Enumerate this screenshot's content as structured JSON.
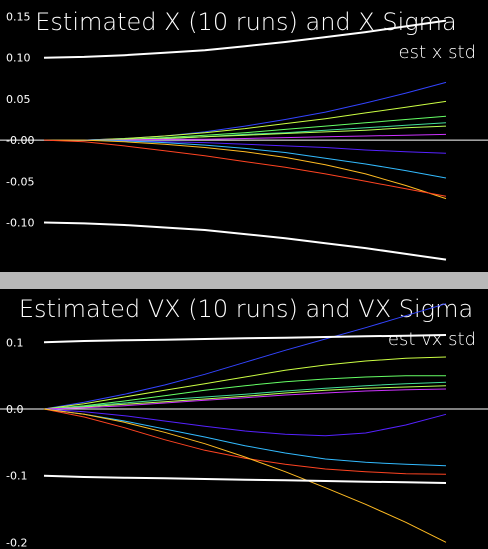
{
  "chart_data": [
    {
      "type": "line",
      "title": "Estimated X (10 runs) and X Sigma",
      "legend": [
        "est x std"
      ],
      "legend_position": "top-right",
      "x": [
        0,
        1,
        2,
        3,
        4,
        5,
        6,
        7,
        8,
        9,
        10
      ],
      "ylim": [
        -0.16,
        0.17
      ],
      "yticks": [
        {
          "value": 0.15,
          "label": "0.15"
        },
        {
          "value": 0.1,
          "label": "0.10"
        },
        {
          "value": 0.05,
          "label": "0.05"
        },
        {
          "value": 0.0,
          "label": "-0.00"
        },
        {
          "value": -0.05,
          "label": "-0.05"
        },
        {
          "value": -0.1,
          "label": "-0.10"
        }
      ],
      "sigma": [
        {
          "color": "#ffffff",
          "values": [
            0.1,
            0.101,
            0.103,
            0.106,
            0.109,
            0.114,
            0.119,
            0.125,
            0.131,
            0.138,
            0.145
          ]
        },
        {
          "color": "#ffffff",
          "values": [
            -0.1,
            -0.101,
            -0.103,
            -0.106,
            -0.109,
            -0.114,
            -0.119,
            -0.125,
            -0.131,
            -0.138,
            -0.145
          ]
        }
      ],
      "runs": [
        {
          "color": "#3344ff",
          "values": [
            0,
            0.0,
            0.002,
            0.005,
            0.01,
            0.017,
            0.025,
            0.034,
            0.045,
            0.057,
            0.07
          ]
        },
        {
          "color": "#ccff44",
          "values": [
            0,
            0.0,
            0.002,
            0.005,
            0.009,
            0.014,
            0.02,
            0.026,
            0.033,
            0.04,
            0.047
          ]
        },
        {
          "color": "#66ff66",
          "values": [
            0,
            0.0,
            0.001,
            0.003,
            0.006,
            0.009,
            0.013,
            0.017,
            0.021,
            0.025,
            0.029
          ]
        },
        {
          "color": "#44dd99",
          "values": [
            0,
            0.0,
            0.001,
            0.002,
            0.004,
            0.007,
            0.009,
            0.012,
            0.015,
            0.018,
            0.021
          ]
        },
        {
          "color": "#bbff55",
          "values": [
            0,
            0.0,
            0.001,
            0.002,
            0.004,
            0.006,
            0.008,
            0.01,
            0.012,
            0.015,
            0.017
          ]
        },
        {
          "color": "#cc33ff",
          "values": [
            0,
            0.0,
            0.0,
            0.001,
            0.001,
            0.002,
            0.003,
            0.004,
            0.005,
            0.006,
            0.007
          ]
        },
        {
          "color": "#5522ff",
          "values": [
            0,
            0.0,
            -0.001,
            -0.002,
            -0.003,
            -0.005,
            -0.007,
            -0.009,
            -0.012,
            -0.014,
            -0.016
          ]
        },
        {
          "color": "#33bbff",
          "values": [
            0,
            0.0,
            -0.001,
            -0.003,
            -0.006,
            -0.01,
            -0.015,
            -0.022,
            -0.029,
            -0.037,
            -0.046
          ]
        },
        {
          "color": "#ffbb22",
          "values": [
            0,
            0.0,
            -0.002,
            -0.005,
            -0.009,
            -0.014,
            -0.021,
            -0.03,
            -0.041,
            -0.055,
            -0.071
          ]
        },
        {
          "color": "#ff4422",
          "values": [
            0,
            -0.002,
            -0.007,
            -0.013,
            -0.019,
            -0.026,
            -0.033,
            -0.041,
            -0.05,
            -0.059,
            -0.068
          ]
        }
      ]
    },
    {
      "type": "line",
      "title": "Estimated VX (10 runs) and VX Sigma",
      "legend": [
        "est vx std"
      ],
      "legend_position": "top-right",
      "x": [
        0,
        1,
        2,
        3,
        4,
        5,
        6,
        7,
        8,
        9,
        10
      ],
      "ylim": [
        -0.21,
        0.18
      ],
      "yticks": [
        {
          "value": 0.1,
          "label": "0.1"
        },
        {
          "value": 0.0,
          "label": "0.0"
        },
        {
          "value": -0.1,
          "label": "-0.1"
        },
        {
          "value": -0.2,
          "label": "-0.2"
        }
      ],
      "sigma": [
        {
          "color": "#ffffff",
          "values": [
            0.1,
            0.102,
            0.103,
            0.104,
            0.105,
            0.106,
            0.107,
            0.108,
            0.109,
            0.11,
            0.111
          ]
        },
        {
          "color": "#ffffff",
          "values": [
            -0.1,
            -0.102,
            -0.103,
            -0.104,
            -0.105,
            -0.106,
            -0.107,
            -0.108,
            -0.109,
            -0.11,
            -0.111
          ]
        }
      ],
      "runs": [
        {
          "color": "#3344ff",
          "values": [
            0,
            0.01,
            0.022,
            0.036,
            0.052,
            0.07,
            0.088,
            0.105,
            0.122,
            0.14,
            0.158
          ]
        },
        {
          "color": "#ccff44",
          "values": [
            0,
            0.008,
            0.018,
            0.028,
            0.038,
            0.048,
            0.058,
            0.066,
            0.072,
            0.076,
            0.078
          ]
        },
        {
          "color": "#66ff66",
          "values": [
            0,
            0.005,
            0.012,
            0.02,
            0.028,
            0.035,
            0.041,
            0.045,
            0.048,
            0.05,
            0.05
          ]
        },
        {
          "color": "#44dd99",
          "values": [
            0,
            0.004,
            0.009,
            0.014,
            0.018,
            0.022,
            0.027,
            0.031,
            0.035,
            0.038,
            0.04
          ]
        },
        {
          "color": "#bbff55",
          "values": [
            0,
            0.003,
            0.007,
            0.011,
            0.015,
            0.019,
            0.024,
            0.028,
            0.031,
            0.033,
            0.035
          ]
        },
        {
          "color": "#cc33ff",
          "values": [
            0,
            0.002,
            0.005,
            0.009,
            0.013,
            0.017,
            0.021,
            0.024,
            0.027,
            0.029,
            0.03
          ]
        },
        {
          "color": "#5522ff",
          "values": [
            0,
            -0.004,
            -0.01,
            -0.018,
            -0.026,
            -0.033,
            -0.038,
            -0.04,
            -0.036,
            -0.024,
            -0.008
          ]
        },
        {
          "color": "#33bbff",
          "values": [
            0,
            -0.008,
            -0.018,
            -0.03,
            -0.042,
            -0.055,
            -0.066,
            -0.075,
            -0.08,
            -0.083,
            -0.085
          ]
        },
        {
          "color": "#ff4422",
          "values": [
            0,
            -0.012,
            -0.028,
            -0.046,
            -0.062,
            -0.074,
            -0.083,
            -0.09,
            -0.094,
            -0.097,
            -0.098
          ]
        },
        {
          "color": "#ffbb22",
          "values": [
            0,
            -0.008,
            -0.02,
            -0.035,
            -0.052,
            -0.072,
            -0.094,
            -0.118,
            -0.143,
            -0.17,
            -0.2
          ]
        }
      ]
    }
  ]
}
